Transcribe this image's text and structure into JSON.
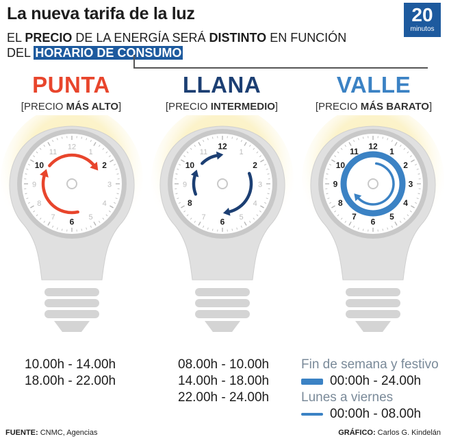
{
  "title": "La nueva tarifa de la luz",
  "logo": {
    "number": "20",
    "word": "minutos"
  },
  "subtitle": {
    "w1": "EL",
    "w2": "PRECIO",
    "w3": "DE LA ENERGÍA SERÁ",
    "w4": "DISTINTO",
    "w5": "EN FUNCIÓN",
    "w6": "DEL",
    "w7": "HORARIO DE CONSUMO"
  },
  "bands": [
    {
      "name": "PUNTA",
      "open": "[PRECIO",
      "strong": "MÁS ALTO",
      "close": "]",
      "color": "#e8452c",
      "times": [
        "10.00h - 14.00h",
        "18.00h - 22.00h"
      ]
    },
    {
      "name": "LLANA",
      "open": "[PRECIO",
      "strong": "INTERMEDIO",
      "close": "]",
      "color": "#1c3f73",
      "times": [
        "08.00h - 10.00h",
        "14.00h - 18.00h",
        "22.00h - 24.00h"
      ]
    },
    {
      "name": "VALLE",
      "open": "[PRECIO",
      "strong": "MÁS BARATO",
      "close": "]",
      "color": "#3b82c4",
      "weekend_label": "Fin de semana y festivo",
      "weekend_time": "00:00h - 24.00h",
      "weekday_label": "Lunes a viernes",
      "weekday_time": "00:00h - 08.00h"
    }
  ],
  "clock_numbers": [
    "12",
    "1",
    "2",
    "3",
    "4",
    "5",
    "6",
    "7",
    "8",
    "9",
    "10",
    "11"
  ],
  "footer": {
    "source_label": "FUENTE:",
    "source": "CNMC, Agencias",
    "credit_label": "GRÁFICO:",
    "credit": "Carlos G. Kindelán"
  }
}
